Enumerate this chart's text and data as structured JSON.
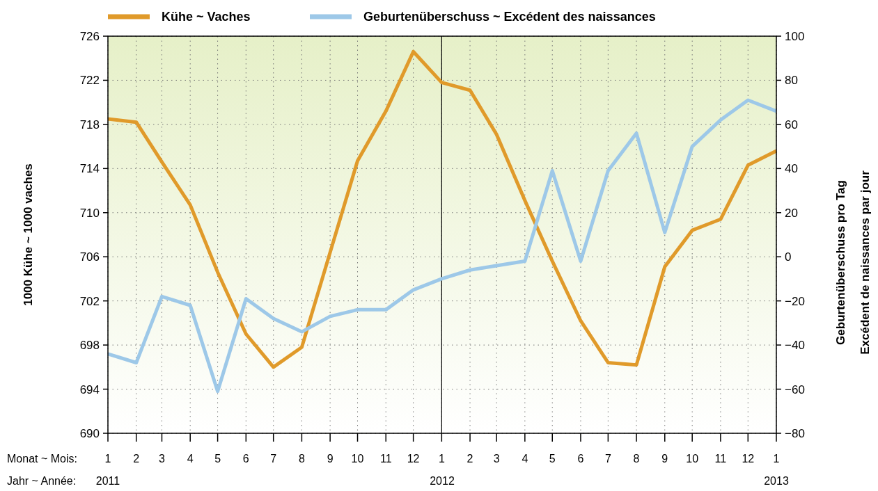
{
  "chart_data": {
    "type": "line",
    "x": [
      "2011-01",
      "2011-02",
      "2011-03",
      "2011-04",
      "2011-05",
      "2011-06",
      "2011-07",
      "2011-08",
      "2011-09",
      "2011-10",
      "2011-11",
      "2011-12",
      "2012-01",
      "2012-02",
      "2012-03",
      "2012-04",
      "2012-05",
      "2012-06",
      "2012-07",
      "2012-08",
      "2012-09",
      "2012-10",
      "2012-11",
      "2012-12",
      "2013-01"
    ],
    "series": [
      {
        "name": "Kühe ~ Vaches",
        "color": "#e09a2a",
        "values": [
          718.5,
          718.2,
          714.6,
          710.7,
          704.6,
          699.0,
          696.0,
          697.8,
          706.4,
          714.7,
          719.2,
          724.6,
          721.8,
          721.1,
          717.1,
          711.1,
          705.6,
          700.2,
          696.4,
          696.2,
          705.1,
          708.4,
          709.4,
          714.3,
          715.6
        ]
      },
      {
        "name": "Geburtenüberschuss ~ Excédent des naissances",
        "color": "#9dc8e8",
        "axis": "y2",
        "values": [
          -44,
          -48,
          -18,
          -22,
          -61,
          -19,
          -28,
          -34,
          -27,
          -24,
          -24,
          -15,
          -10,
          -6,
          -4,
          -2,
          39,
          -2,
          39,
          56,
          11,
          50,
          62,
          71,
          66
        ]
      }
    ],
    "xlim": [
      "2011-01",
      "2013-01"
    ],
    "xticks": [
      {
        "value": "2011-01",
        "label": "1"
      },
      {
        "value": "2011-02",
        "label": "2"
      },
      {
        "value": "2011-03",
        "label": "3"
      },
      {
        "value": "2011-04",
        "label": "4"
      },
      {
        "value": "2011-05",
        "label": "5"
      },
      {
        "value": "2011-06",
        "label": "6"
      },
      {
        "value": "2011-07",
        "label": "7"
      },
      {
        "value": "2011-08",
        "label": "8"
      },
      {
        "value": "2011-09",
        "label": "9"
      },
      {
        "value": "2011-10",
        "label": "10"
      },
      {
        "value": "2011-11",
        "label": "11"
      },
      {
        "value": "2011-12",
        "label": "12"
      },
      {
        "value": "2012-01",
        "label": "1"
      },
      {
        "value": "2012-02",
        "label": "2"
      },
      {
        "value": "2012-03",
        "label": "3"
      },
      {
        "value": "2012-04",
        "label": "4"
      },
      {
        "value": "2012-05",
        "label": "5"
      },
      {
        "value": "2012-06",
        "label": "6"
      },
      {
        "value": "2012-07",
        "label": "7"
      },
      {
        "value": "2012-08",
        "label": "8"
      },
      {
        "value": "2012-09",
        "label": "9"
      },
      {
        "value": "2012-10",
        "label": "10"
      },
      {
        "value": "2012-11",
        "label": "11"
      },
      {
        "value": "2012-12",
        "label": "12"
      },
      {
        "value": "2013-01",
        "label": "1"
      }
    ],
    "ylim": [
      690,
      726
    ],
    "yticks": [
      690,
      694,
      698,
      702,
      706,
      710,
      714,
      718,
      722,
      726
    ],
    "y2lim": [
      -80,
      100
    ],
    "y2ticks": [
      -80,
      -60,
      -40,
      -20,
      0,
      20,
      40,
      60,
      80,
      100
    ],
    "ylabel": "1000 Kühe ~ 1000 vaches",
    "y2label": "Geburtenüberschuss pro Tag\nExcédent de naissances par jour",
    "ref_lines": [
      {
        "axis": "x",
        "value": "2012-01",
        "color": "#000000"
      }
    ],
    "annotations": [
      "Monat ~ Mois:",
      "Jahr ~ Année:",
      "2011",
      "2012",
      "2013"
    ],
    "grid": true,
    "legend": "top",
    "line_style": "solid",
    "marker": "none"
  }
}
